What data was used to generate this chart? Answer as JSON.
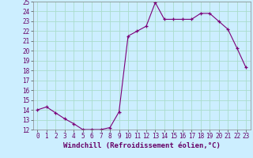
{
  "hours": [
    0,
    1,
    2,
    3,
    4,
    5,
    6,
    7,
    8,
    9,
    10,
    11,
    12,
    13,
    14,
    15,
    16,
    17,
    18,
    19,
    20,
    21,
    22,
    23
  ],
  "values": [
    14.0,
    14.3,
    13.7,
    13.1,
    12.6,
    12.0,
    12.0,
    12.0,
    12.2,
    13.8,
    21.5,
    22.0,
    22.5,
    24.9,
    23.2,
    23.2,
    23.2,
    23.2,
    23.8,
    23.8,
    23.0,
    22.2,
    20.3,
    18.3
  ],
  "xlabel": "Windchill (Refroidissement éolien,°C)",
  "ylim": [
    12,
    25
  ],
  "yticks": [
    12,
    13,
    14,
    15,
    16,
    17,
    18,
    19,
    20,
    21,
    22,
    23,
    24,
    25
  ],
  "xlim": [
    -0.5,
    23.5
  ],
  "xticks": [
    0,
    1,
    2,
    3,
    4,
    5,
    6,
    7,
    8,
    9,
    10,
    11,
    12,
    13,
    14,
    15,
    16,
    17,
    18,
    19,
    20,
    21,
    22,
    23
  ],
  "line_color": "#7B0078",
  "marker": "+",
  "bg_color": "#cceeff",
  "grid_color": "#aaddcc",
  "tick_label_fontsize": 5.5,
  "xlabel_fontsize": 6.5
}
